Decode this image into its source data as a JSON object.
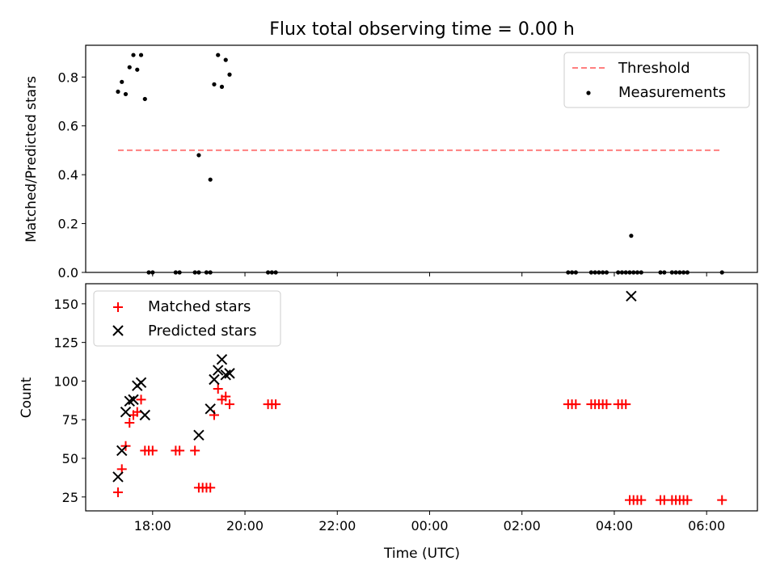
{
  "chart_data": {
    "title": "Flux total observing time = 0.00 h",
    "xlabel": "Time (UTC)",
    "xlim_hours": [
      16.55,
      31.1
    ],
    "x_ticks": [
      {
        "label": "18:00",
        "h": 18
      },
      {
        "label": "20:00",
        "h": 20
      },
      {
        "label": "22:00",
        "h": 22
      },
      {
        "label": "00:00",
        "h": 24
      },
      {
        "label": "02:00",
        "h": 26
      },
      {
        "label": "04:00",
        "h": 28
      },
      {
        "label": "06:00",
        "h": 30
      }
    ],
    "panels": [
      {
        "type": "scatter",
        "ylabel": "Matched/Predicted stars",
        "ylim": [
          0,
          0.93
        ],
        "y_ticks": [
          "0.0",
          "0.2",
          "0.4",
          "0.6",
          "0.8"
        ],
        "legend_position": "top-right",
        "threshold": {
          "name": "Threshold",
          "value": 0.5,
          "x_range": [
            "17:15",
            "06:20"
          ],
          "color": "#ff7f7f"
        },
        "series": [
          {
            "name": "Measurements",
            "color": "#000000",
            "marker": "dot",
            "points": [
              [
                "17:15",
                0.74
              ],
              [
                "17:20",
                0.78
              ],
              [
                "17:25",
                0.73
              ],
              [
                "17:30",
                0.84
              ],
              [
                "17:35",
                0.89
              ],
              [
                "17:40",
                0.83
              ],
              [
                "17:45",
                0.89
              ],
              [
                "17:50",
                0.71
              ],
              [
                "17:55",
                0.0
              ],
              [
                "18:00",
                0.0
              ],
              [
                "18:30",
                0.0
              ],
              [
                "18:35",
                0.0
              ],
              [
                "18:55",
                0.0
              ],
              [
                "19:00",
                0.0
              ],
              [
                "19:00",
                0.48
              ],
              [
                "19:10",
                0.0
              ],
              [
                "19:15",
                0.0
              ],
              [
                "19:15",
                0.38
              ],
              [
                "19:20",
                0.77
              ],
              [
                "19:25",
                0.89
              ],
              [
                "19:30",
                0.76
              ],
              [
                "19:35",
                0.87
              ],
              [
                "19:40",
                0.81
              ],
              [
                "20:30",
                0.0
              ],
              [
                "20:35",
                0.0
              ],
              [
                "20:40",
                0.0
              ],
              [
                "03:00",
                0.0
              ],
              [
                "03:05",
                0.0
              ],
              [
                "03:10",
                0.0
              ],
              [
                "03:30",
                0.0
              ],
              [
                "03:35",
                0.0
              ],
              [
                "03:40",
                0.0
              ],
              [
                "03:45",
                0.0
              ],
              [
                "03:50",
                0.0
              ],
              [
                "04:05",
                0.0
              ],
              [
                "04:10",
                0.0
              ],
              [
                "04:15",
                0.0
              ],
              [
                "04:20",
                0.0
              ],
              [
                "04:22",
                0.15
              ],
              [
                "04:25",
                0.0
              ],
              [
                "04:30",
                0.0
              ],
              [
                "04:35",
                0.0
              ],
              [
                "05:00",
                0.0
              ],
              [
                "05:05",
                0.0
              ],
              [
                "05:15",
                0.0
              ],
              [
                "05:20",
                0.0
              ],
              [
                "05:25",
                0.0
              ],
              [
                "05:30",
                0.0
              ],
              [
                "05:35",
                0.0
              ],
              [
                "06:20",
                0.0
              ]
            ]
          }
        ]
      },
      {
        "type": "scatter",
        "ylabel": "Count",
        "ylim": [
          16,
          163
        ],
        "y_ticks": [
          "25",
          "50",
          "75",
          "100",
          "125",
          "150"
        ],
        "legend_position": "top-left",
        "series": [
          {
            "name": "Matched stars",
            "color": "#ff0000",
            "marker": "plus",
            "points": [
              [
                "17:15",
                28
              ],
              [
                "17:20",
                43
              ],
              [
                "17:25",
                58
              ],
              [
                "17:30",
                73
              ],
              [
                "17:35",
                78
              ],
              [
                "17:40",
                80
              ],
              [
                "17:45",
                88
              ],
              [
                "17:50",
                55
              ],
              [
                "17:55",
                55
              ],
              [
                "18:00",
                55
              ],
              [
                "18:30",
                55
              ],
              [
                "18:35",
                55
              ],
              [
                "18:55",
                55
              ],
              [
                "19:00",
                31
              ],
              [
                "19:05",
                31
              ],
              [
                "19:10",
                31
              ],
              [
                "19:15",
                31
              ],
              [
                "19:20",
                78
              ],
              [
                "19:25",
                95
              ],
              [
                "19:30",
                88
              ],
              [
                "19:35",
                90
              ],
              [
                "19:40",
                85
              ],
              [
                "20:30",
                85
              ],
              [
                "20:35",
                85
              ],
              [
                "20:40",
                85
              ],
              [
                "03:00",
                85
              ],
              [
                "03:05",
                85
              ],
              [
                "03:10",
                85
              ],
              [
                "03:30",
                85
              ],
              [
                "03:35",
                85
              ],
              [
                "03:40",
                85
              ],
              [
                "03:45",
                85
              ],
              [
                "03:50",
                85
              ],
              [
                "04:05",
                85
              ],
              [
                "04:10",
                85
              ],
              [
                "04:15",
                85
              ],
              [
                "04:20",
                23
              ],
              [
                "04:25",
                23
              ],
              [
                "04:30",
                23
              ],
              [
                "04:35",
                23
              ],
              [
                "05:00",
                23
              ],
              [
                "05:05",
                23
              ],
              [
                "05:15",
                23
              ],
              [
                "05:20",
                23
              ],
              [
                "05:25",
                23
              ],
              [
                "05:30",
                23
              ],
              [
                "05:35",
                23
              ],
              [
                "06:20",
                23
              ]
            ]
          },
          {
            "name": "Predicted stars",
            "color": "#000000",
            "marker": "x",
            "points": [
              [
                "17:15",
                38
              ],
              [
                "17:20",
                55
              ],
              [
                "17:25",
                80
              ],
              [
                "17:30",
                87
              ],
              [
                "17:35",
                88
              ],
              [
                "17:40",
                97
              ],
              [
                "17:45",
                99
              ],
              [
                "17:50",
                78
              ],
              [
                "19:00",
                65
              ],
              [
                "19:15",
                82
              ],
              [
                "19:20",
                101
              ],
              [
                "19:25",
                107
              ],
              [
                "19:30",
                114
              ],
              [
                "19:35",
                104
              ],
              [
                "19:40",
                105
              ],
              [
                "04:22",
                155
              ]
            ]
          }
        ]
      }
    ]
  }
}
